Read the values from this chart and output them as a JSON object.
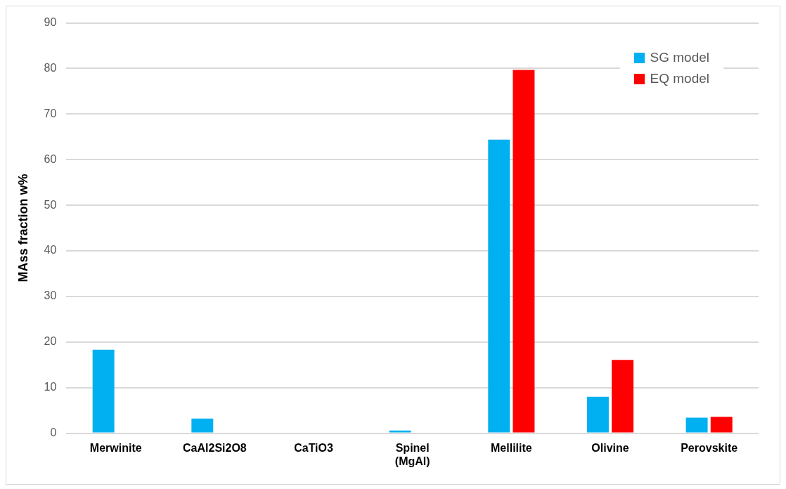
{
  "chart_data": {
    "type": "bar",
    "ylabel": "MAss fraction w%",
    "categories": [
      "Merwinite",
      "CaAl2Si2O8",
      "CaTiO3",
      "Spinel (MgAl)",
      "Mellilite",
      "Olivine",
      "Perovskite"
    ],
    "series": [
      {
        "name": "SG model",
        "color": "#00b0f0",
        "values": [
          18.3,
          3.2,
          0,
          0.6,
          64.4,
          8.0,
          3.4
        ]
      },
      {
        "name": "EQ model",
        "color": "#ff0000",
        "values": [
          0,
          0,
          0,
          0,
          79.7,
          16.1,
          3.6
        ]
      }
    ],
    "ylim": [
      0,
      90
    ],
    "yticks": [
      0,
      10,
      20,
      30,
      40,
      50,
      60,
      70,
      80,
      90
    ],
    "grid": "y",
    "legend": "top right"
  }
}
